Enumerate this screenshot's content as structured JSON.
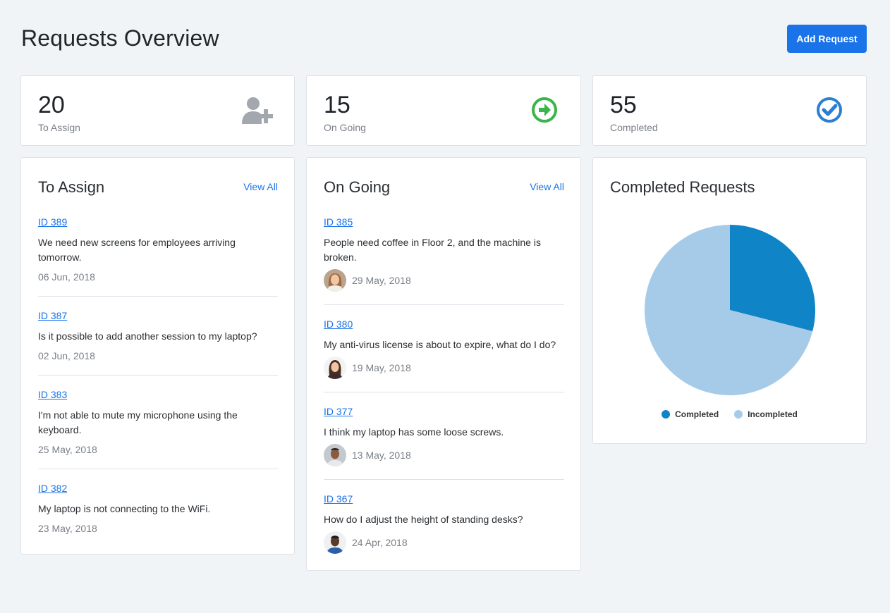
{
  "header": {
    "title": "Requests Overview",
    "add_button": "Add Request"
  },
  "stats": [
    {
      "value": "20",
      "label": "To Assign",
      "icon": "user-plus-icon",
      "color": "#a3a8ae"
    },
    {
      "value": "15",
      "label": "On Going",
      "icon": "arrow-circle-right-icon",
      "color": "#3bb54a"
    },
    {
      "value": "55",
      "label": "Completed",
      "icon": "check-circle-icon",
      "color": "#2a7fd4"
    }
  ],
  "to_assign": {
    "title": "To Assign",
    "view_all": "View All",
    "items": [
      {
        "id": "ID 389",
        "text": "We need new screens for employees arriving tomorrow.",
        "date": "06 Jun, 2018"
      },
      {
        "id": "ID 387",
        "text": "Is it possible to add another session to my laptop?",
        "date": "02 Jun, 2018"
      },
      {
        "id": "ID 383",
        "text": "I'm not able to mute my microphone using the keyboard.",
        "date": "25 May, 2018"
      },
      {
        "id": "ID 382",
        "text": "My laptop is not connecting to the WiFi.",
        "date": "23 May, 2018"
      }
    ]
  },
  "on_going": {
    "title": "On Going",
    "view_all": "View All",
    "items": [
      {
        "id": "ID 385",
        "text": "People need coffee in Floor 2, and the machine is broken.",
        "date": "29 May, 2018"
      },
      {
        "id": "ID 380",
        "text": "My anti-virus license is about to expire, what do I do?",
        "date": "19 May, 2018"
      },
      {
        "id": "ID 377",
        "text": "I think my laptop has some loose screws.",
        "date": "13 May, 2018"
      },
      {
        "id": "ID 367",
        "text": "How do I adjust the height of standing desks?",
        "date": "24 Apr, 2018"
      }
    ]
  },
  "completed_chart": {
    "title": "Completed Requests"
  },
  "chart_data": {
    "type": "pie",
    "categories": [
      "Completed",
      "Incompleted"
    ],
    "values": [
      29,
      71
    ],
    "colors": [
      "#0f84c6",
      "#a6cbe9"
    ],
    "legend": "bottom"
  }
}
